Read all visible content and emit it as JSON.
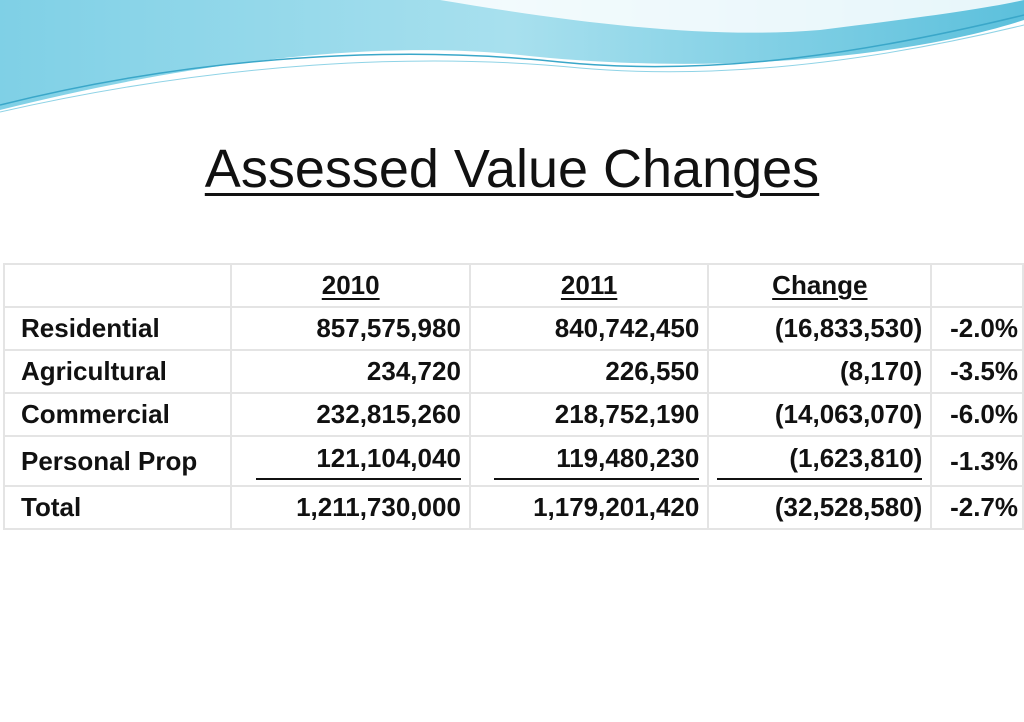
{
  "title": "Assessed Value Changes",
  "table": {
    "header": [
      "2010",
      "2011",
      "Change"
    ],
    "rows": [
      [
        "Residential",
        "857,575,980",
        "840,742,450",
        "(16,833,530)",
        "-2.0%"
      ],
      [
        "Agricultural",
        "234,720",
        "226,550",
        "(8,170)",
        "-3.5%"
      ],
      [
        "Commercial",
        "232,815,260",
        "218,752,190",
        "(14,063,070)",
        "-6.0%"
      ],
      [
        "Personal Prop",
        "121,104,040",
        "119,480,230",
        "(1,623,810)",
        "-1.3%"
      ]
    ],
    "total": [
      "Total",
      "1,211,730,000",
      "1,179,201,420",
      "(32,528,580)",
      "-2.7%"
    ]
  }
}
